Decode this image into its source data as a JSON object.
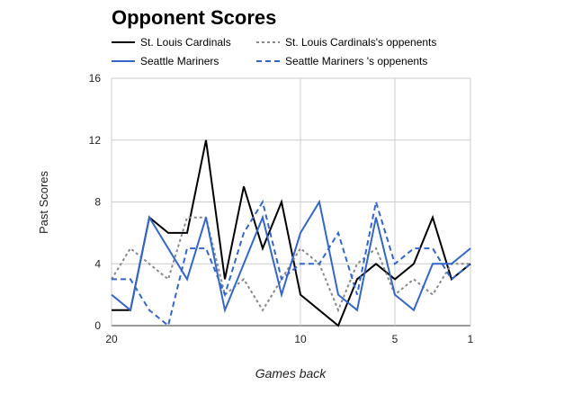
{
  "chart_data": {
    "type": "line",
    "title": "Opponent Scores",
    "xlabel": "Games back",
    "ylabel": "Past Scores",
    "x": [
      20,
      19,
      18,
      17,
      16,
      15,
      14,
      13,
      12,
      11,
      10,
      9,
      8,
      7,
      6,
      5,
      4,
      3,
      2,
      1
    ],
    "xlim": [
      20,
      1
    ],
    "xticks": [
      "20",
      "10",
      "5",
      "1"
    ],
    "ylim": [
      0,
      16
    ],
    "yticks": [
      "0",
      "4",
      "8",
      "12",
      "16"
    ],
    "grid": true,
    "legend_position": "top",
    "series": [
      {
        "name": "St. Louis Cardinals",
        "color": "#000000",
        "dash": "solid",
        "values": [
          1,
          1,
          7,
          6,
          6,
          12,
          3,
          9,
          5,
          8,
          2,
          1,
          0,
          3,
          4,
          3,
          4,
          7,
          3,
          4
        ]
      },
      {
        "name": "St. Louis Cardinals's oppenents",
        "color": "#888888",
        "dash": "dot",
        "values": [
          3,
          5,
          4,
          3,
          7,
          7,
          2,
          3,
          1,
          3,
          5,
          4,
          1,
          4,
          5,
          2,
          3,
          2,
          4,
          4
        ]
      },
      {
        "name": "Seattle Mariners",
        "color": "#3366cc",
        "dash": "solid",
        "values": [
          2,
          1,
          7,
          5,
          3,
          7,
          1,
          4,
          7,
          2,
          6,
          8,
          2,
          1,
          7,
          2,
          1,
          4,
          4,
          5
        ]
      },
      {
        "name": "Seattle Mariners 's oppenents",
        "color": "#3366cc",
        "dash": "dash",
        "values": [
          3,
          3,
          1,
          0,
          5,
          5,
          2,
          6,
          8,
          3,
          4,
          4,
          6,
          2,
          8,
          4,
          5,
          5,
          3,
          4
        ]
      }
    ]
  }
}
